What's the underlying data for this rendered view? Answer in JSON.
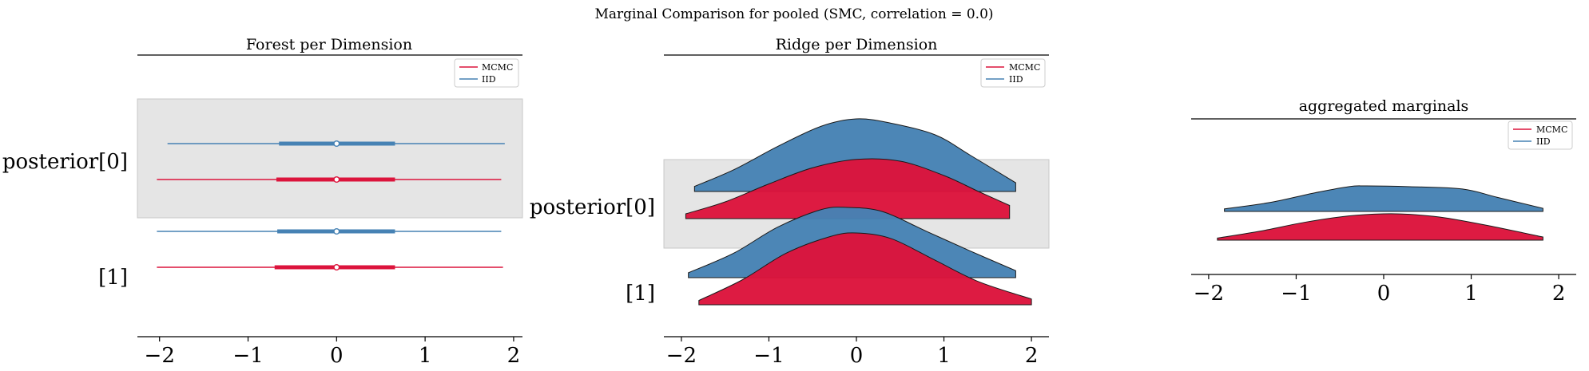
{
  "figure": {
    "suptitle": "Marginal Comparison for pooled (SMC, correlation = 0.0)"
  },
  "colors": {
    "mcmc": "#dc143c",
    "iid": "#4682b4",
    "highlight_band": "#e5e5e5"
  },
  "chart_data": [
    {
      "type": "forest",
      "title": "Forest per Dimension",
      "xlim": [
        -2.25,
        2.1
      ],
      "xticks": [
        "−2",
        "−1",
        "0",
        "1",
        "2"
      ],
      "legend": {
        "placement": "top-right",
        "entries": [
          "MCMC",
          "IID"
        ]
      },
      "ylabels": [
        "posterior[0]",
        "[1]"
      ],
      "series": [
        {
          "name": "MCMC",
          "rows": [
            {
              "label": "posterior[0]",
              "center": 0.0,
              "hdi_low": -2.03,
              "hdi_high": 1.86,
              "iqr_low": -0.68,
              "iqr_high": 0.66
            },
            {
              "label": "[1]",
              "center": 0.0,
              "hdi_low": -2.03,
              "hdi_high": 1.88,
              "iqr_low": -0.7,
              "iqr_high": 0.66
            }
          ]
        },
        {
          "name": "IID",
          "rows": [
            {
              "label": "posterior[0]",
              "center": 0.0,
              "hdi_low": -1.91,
              "hdi_high": 1.9,
              "iqr_low": -0.65,
              "iqr_high": 0.66
            },
            {
              "label": "[1]",
              "center": 0.0,
              "hdi_low": -2.03,
              "hdi_high": 1.86,
              "iqr_low": -0.67,
              "iqr_high": 0.66
            }
          ]
        }
      ]
    },
    {
      "type": "ridge",
      "title": "Ridge per Dimension",
      "xlim": [
        -2.2,
        2.2
      ],
      "xticks": [
        "−2",
        "−1",
        "0",
        "1",
        "2"
      ],
      "legend": {
        "placement": "top-right",
        "entries": [
          "MCMC",
          "IID"
        ]
      },
      "ylabels": [
        "posterior[0]",
        "[1]"
      ],
      "ridges": [
        {
          "label": "posterior[0]",
          "series": "MCMC",
          "x_min": -1.95,
          "x_max": 1.75,
          "density_x": [
            -1.95,
            -1.5,
            -1.0,
            -0.5,
            0.0,
            0.5,
            1.0,
            1.4,
            1.75
          ],
          "density_rel": [
            0.08,
            0.28,
            0.58,
            0.85,
            0.99,
            0.96,
            0.72,
            0.45,
            0.22
          ]
        },
        {
          "label": "posterior[0]",
          "series": "IID",
          "x_min": -1.85,
          "x_max": 1.82,
          "density_x": [
            -1.85,
            -1.4,
            -0.9,
            -0.4,
            0.0,
            0.4,
            0.9,
            1.3,
            1.82
          ],
          "density_rel": [
            0.07,
            0.3,
            0.62,
            0.9,
            1.0,
            0.94,
            0.78,
            0.5,
            0.12
          ]
        },
        {
          "label": "[1]",
          "series": "MCMC",
          "x_min": -1.8,
          "x_max": 2.0,
          "density_x": [
            -1.8,
            -1.3,
            -0.8,
            -0.3,
            0.0,
            0.4,
            0.9,
            1.4,
            2.0
          ],
          "density_rel": [
            0.06,
            0.35,
            0.72,
            0.95,
            1.0,
            0.92,
            0.62,
            0.32,
            0.08
          ]
        },
        {
          "label": "[1]",
          "series": "IID",
          "x_min": -1.92,
          "x_max": 1.82,
          "density_x": [
            -1.92,
            -1.4,
            -0.9,
            -0.4,
            -0.1,
            0.3,
            0.8,
            1.3,
            1.82
          ],
          "density_rel": [
            0.07,
            0.35,
            0.72,
            0.97,
            1.0,
            0.94,
            0.66,
            0.38,
            0.1
          ]
        }
      ]
    },
    {
      "type": "ridge",
      "title": "aggregated marginals",
      "xlim": [
        -2.2,
        2.2
      ],
      "xticks": [
        "−2",
        "−1",
        "0",
        "1",
        "2"
      ],
      "legend": {
        "placement": "top-right",
        "entries": [
          "MCMC",
          "IID"
        ]
      },
      "ylabels": [],
      "ridges": [
        {
          "label": "aggregated",
          "series": "MCMC",
          "x_min": -1.9,
          "x_max": 1.82,
          "density_x": [
            -1.9,
            -1.4,
            -0.9,
            -0.4,
            0.0,
            0.3,
            0.7,
            1.2,
            1.82
          ],
          "density_rel": [
            0.08,
            0.35,
            0.68,
            0.92,
            1.0,
            0.98,
            0.85,
            0.55,
            0.12
          ]
        },
        {
          "label": "aggregated",
          "series": "IID",
          "x_min": -1.82,
          "x_max": 1.82,
          "density_x": [
            -1.82,
            -1.3,
            -0.8,
            -0.4,
            -0.2,
            0.3,
            0.9,
            1.3,
            1.82
          ],
          "density_rel": [
            0.1,
            0.35,
            0.72,
            0.97,
            1.0,
            0.97,
            0.88,
            0.55,
            0.12
          ]
        }
      ]
    }
  ]
}
